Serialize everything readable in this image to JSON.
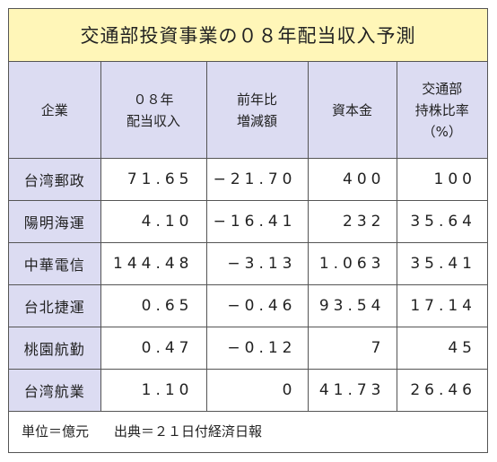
{
  "title": "交通部投資事業の０８年配当収入予測",
  "headers": {
    "company": "企業",
    "dividend": [
      "０８年",
      "配当収入"
    ],
    "change": [
      "前年比",
      "増減額"
    ],
    "capital": "資本金",
    "ratio": [
      "交通部",
      "持株比率",
      "（%）"
    ]
  },
  "rows": [
    {
      "company": "台湾郵政",
      "dividend": "71.65",
      "change": "−21.70",
      "capital": "400",
      "ratio": "100"
    },
    {
      "company": "陽明海運",
      "dividend": "4.10",
      "change": "−16.41",
      "capital": "232",
      "ratio": "35.64"
    },
    {
      "company": "中華電信",
      "dividend": "144.48",
      "change": "−3.13",
      "capital": "1.063",
      "ratio": "35.41"
    },
    {
      "company": "台北捷運",
      "dividend": "0.65",
      "change": "−0.46",
      "capital": "93.54",
      "ratio": "17.14"
    },
    {
      "company": "桃園航勤",
      "dividend": "0.47",
      "change": "−0.12",
      "capital": "7",
      "ratio": "45"
    },
    {
      "company": "台湾航業",
      "dividend": "1.10",
      "change": "0",
      "capital": "41.73",
      "ratio": "26.46"
    }
  ],
  "footer": {
    "unit": "単位＝億元",
    "source": "出典＝２１日付経済日報"
  }
}
